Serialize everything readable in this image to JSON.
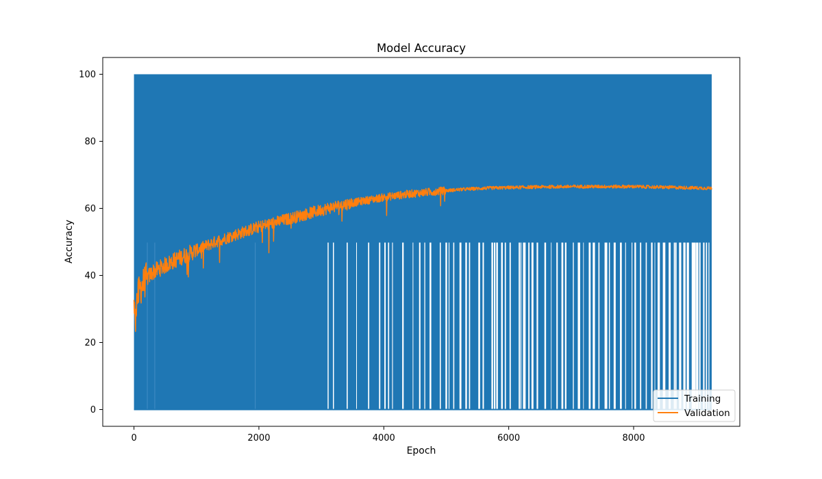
{
  "chart_data": {
    "type": "line",
    "title": "Model Accuracy",
    "xlabel": "Epoch",
    "ylabel": "Accuracy",
    "xlim": [
      -500,
      9700
    ],
    "ylim": [
      -5,
      105
    ],
    "x_ticks": [
      0,
      2000,
      4000,
      6000,
      8000
    ],
    "y_ticks": [
      0,
      20,
      40,
      60,
      80,
      100
    ],
    "x_tick_labels": [
      "0",
      "2000",
      "4000",
      "6000",
      "8000"
    ],
    "y_tick_labels": [
      "0",
      "20",
      "40",
      "60",
      "80",
      "100"
    ],
    "grid": false,
    "legend_position": "bottom-right",
    "legend": [
      "Training",
      "Validation"
    ],
    "series": [
      {
        "name": "Training",
        "color": "#1f77b4",
        "description_values": [
          0,
          50,
          100
        ],
        "x_range": [
          0,
          9250
        ],
        "oscillates_between": [
          0,
          100
        ],
        "fifty_percent_level": 50
      },
      {
        "name": "Validation",
        "color": "#ff7f0e",
        "x": [
          0,
          50,
          100,
          200,
          300,
          400,
          500,
          700,
          1000,
          1300,
          1600,
          2000,
          2400,
          2800,
          3200,
          3600,
          4000,
          4400,
          4800,
          5200,
          5600,
          6000,
          6500,
          7000,
          7500,
          8000,
          8500,
          9000,
          9250
        ],
        "y": [
          28,
          33,
          36,
          39,
          41,
          42,
          43,
          45,
          47.5,
          50,
          52,
          54.5,
          56.5,
          58.5,
          60.5,
          62,
          63.3,
          64.3,
          65,
          65.6,
          66,
          66.2,
          66.4,
          66.5,
          66.5,
          66.5,
          66.3,
          66.1,
          66
        ]
      }
    ]
  }
}
